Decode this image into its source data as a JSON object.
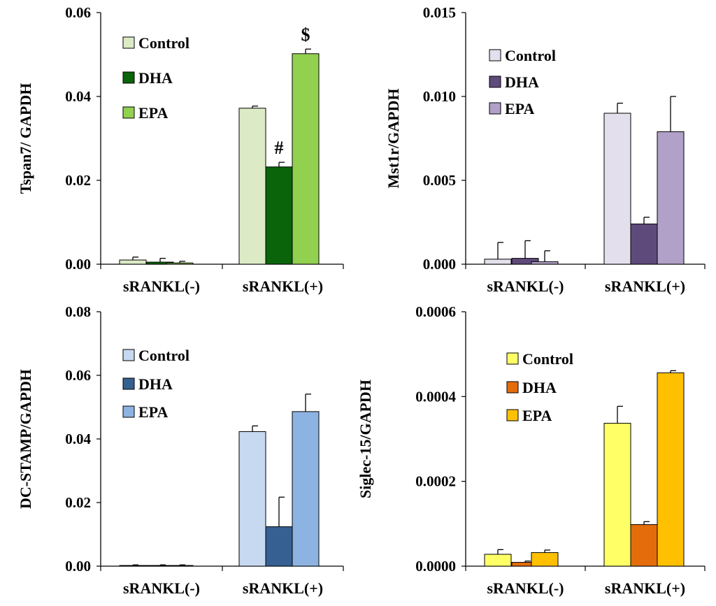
{
  "chart_data": [
    {
      "id": "tspan7",
      "type": "bar",
      "ylabel": "Tspan7/ GAPDH",
      "ylim": [
        0,
        0.06
      ],
      "yticks": [
        "0.00",
        "0.02",
        "0.04",
        "0.06"
      ],
      "categories": [
        "sRANKL(-)",
        "sRANKL(+)"
      ],
      "series": [
        {
          "name": "Control",
          "color": "#dcebc6",
          "values": [
            0.001,
            0.0372
          ],
          "errors": [
            0.0007,
            0.0005
          ]
        },
        {
          "name": "DHA",
          "color": "#0a640a",
          "values": [
            0.0005,
            0.0232
          ],
          "errors": [
            0.0009,
            0.0011
          ]
        },
        {
          "name": "EPA",
          "color": "#92d050",
          "values": [
            0.0003,
            0.0502
          ],
          "errors": [
            0.0004,
            0.0011
          ]
        }
      ],
      "annotations": [
        {
          "category": 1,
          "series": 1,
          "text": "#"
        },
        {
          "category": 1,
          "series": 2,
          "text": "$"
        }
      ]
    },
    {
      "id": "mst1r",
      "type": "bar",
      "ylabel": "Mst1r/GAPDH",
      "ylim": [
        0,
        0.015
      ],
      "yticks": [
        "0.000",
        "0.005",
        "0.010",
        "0.015"
      ],
      "categories": [
        "sRANKL(-)",
        "sRANKL(+)"
      ],
      "series": [
        {
          "name": "Control",
          "color": "#e4dfec",
          "values": [
            0.0003,
            0.009
          ],
          "errors": [
            0.001,
            0.0006
          ]
        },
        {
          "name": "DHA",
          "color": "#5f4a7c",
          "values": [
            0.00035,
            0.0024
          ],
          "errors": [
            0.00105,
            0.0004
          ]
        },
        {
          "name": "EPA",
          "color": "#b1a0c7",
          "values": [
            0.00015,
            0.0079
          ],
          "errors": [
            0.00065,
            0.0021
          ]
        }
      ],
      "annotations": []
    },
    {
      "id": "dcstamp",
      "type": "bar",
      "ylabel": "DC-STAMP/GAPDH",
      "ylim": [
        0,
        0.08
      ],
      "yticks": [
        "0.00",
        "0.02",
        "0.04",
        "0.06",
        "0.08"
      ],
      "categories": [
        "sRANKL(-)",
        "sRANKL(+)"
      ],
      "series": [
        {
          "name": "Control",
          "color": "#c6d9f1",
          "values": [
            0.0002,
            0.0423
          ],
          "errors": [
            0.0002,
            0.0018
          ]
        },
        {
          "name": "DHA",
          "color": "#366092",
          "values": [
            0.0002,
            0.0124
          ],
          "errors": [
            0.0002,
            0.0093
          ]
        },
        {
          "name": "EPA",
          "color": "#8db3e2",
          "values": [
            0.0002,
            0.0486
          ],
          "errors": [
            0.0002,
            0.0055
          ]
        }
      ],
      "annotations": []
    },
    {
      "id": "siglec15",
      "type": "bar",
      "ylabel": "Siglec-15/GAPDH",
      "ylim": [
        0,
        0.0006
      ],
      "yticks": [
        "0.0000",
        "0.0002",
        "0.0004",
        "0.0006"
      ],
      "categories": [
        "sRANKL(-)",
        "sRANKL(+)"
      ],
      "series": [
        {
          "name": "Control",
          "color": "#ffff66",
          "values": [
            2.8e-05,
            0.000337
          ],
          "errors": [
            1.1e-05,
            4e-05
          ]
        },
        {
          "name": "DHA",
          "color": "#e46c0a",
          "values": [
            9e-06,
            9.8e-05
          ],
          "errors": [
            3e-06,
            7e-06
          ]
        },
        {
          "name": "EPA",
          "color": "#ffc000",
          "values": [
            3.2e-05,
            0.000456
          ],
          "errors": [
            6e-06,
            5e-06
          ]
        }
      ],
      "annotations": []
    }
  ]
}
